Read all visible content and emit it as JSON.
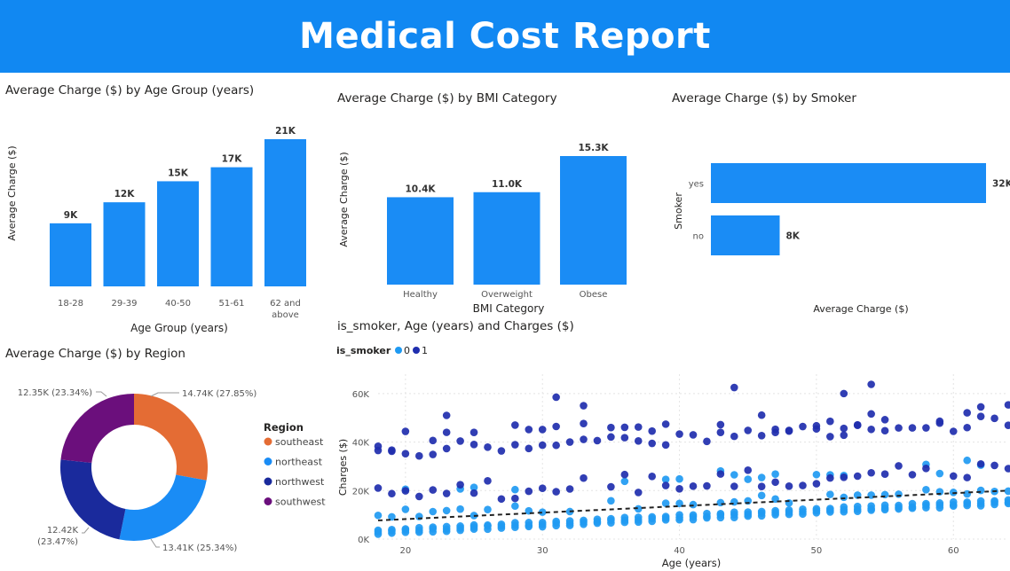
{
  "header": {
    "title": "Medical Cost Report"
  },
  "colors": {
    "primary": "#1a8cf5",
    "southeast": "#e46c34",
    "northeast": "#1a8cf5",
    "northwest": "#1a2a9c",
    "southwest": "#6b0f7c",
    "smoker0": "#1f9af2",
    "smoker1": "#1f2eae"
  },
  "chart_data": [
    {
      "type": "bar",
      "title": "Average Charge ($) by Age Group (years)",
      "xlabel": "Age Group (years)",
      "ylabel": "Average Charge ($)",
      "categories": [
        "18-28",
        "29-39",
        "40-50",
        "51-61",
        "62 and above"
      ],
      "values": [
        9000,
        12000,
        15000,
        17000,
        21000
      ],
      "labels": [
        "9K",
        "12K",
        "15K",
        "17K",
        "21K"
      ]
    },
    {
      "type": "bar",
      "title": "Average Charge ($) by BMI Category",
      "xlabel": "BMI Category",
      "ylabel": "Average Charge ($)",
      "categories": [
        "Healthy",
        "Overweight",
        "Obese"
      ],
      "values": [
        10400,
        11000,
        15300
      ],
      "labels": [
        "10.4K",
        "11.0K",
        "15.3K"
      ]
    },
    {
      "type": "bar",
      "orientation": "horizontal",
      "title": "Average Charge ($) by Smoker",
      "xlabel": "Average Charge ($)",
      "ylabel": "Smoker",
      "categories": [
        "yes",
        "no"
      ],
      "values": [
        32000,
        8000
      ],
      "labels": [
        "32K",
        "8K"
      ]
    },
    {
      "type": "pie",
      "title": "Average Charge ($) by Region",
      "legend_title": "Region",
      "legend_position": "right",
      "categories": [
        "southeast",
        "northeast",
        "northwest",
        "southwest"
      ],
      "values": [
        14740,
        13410,
        12420,
        12350
      ],
      "labels": [
        "14.74K (27.85%)",
        "13.41K (25.34%)",
        "12.42K (23.47%)",
        "12.35K (23.34%)"
      ]
    },
    {
      "type": "scatter",
      "title": "is_smoker, Age (years) and Charges ($)",
      "legend_title": "is_smoker",
      "legend_position": "top-left",
      "series_names": [
        "0",
        "1"
      ],
      "xlabel": "Age (years)",
      "ylabel": "Charges ($)",
      "xlim": [
        18,
        64
      ],
      "ylim": [
        0,
        68000
      ],
      "xticks": [
        "20",
        "30",
        "40",
        "50",
        "60"
      ],
      "yticks": [
        "0K",
        "20K",
        "40K",
        "60K"
      ],
      "trend": {
        "x": [
          18,
          64
        ],
        "y": [
          7700,
          20000
        ]
      },
      "grid": true
    }
  ]
}
